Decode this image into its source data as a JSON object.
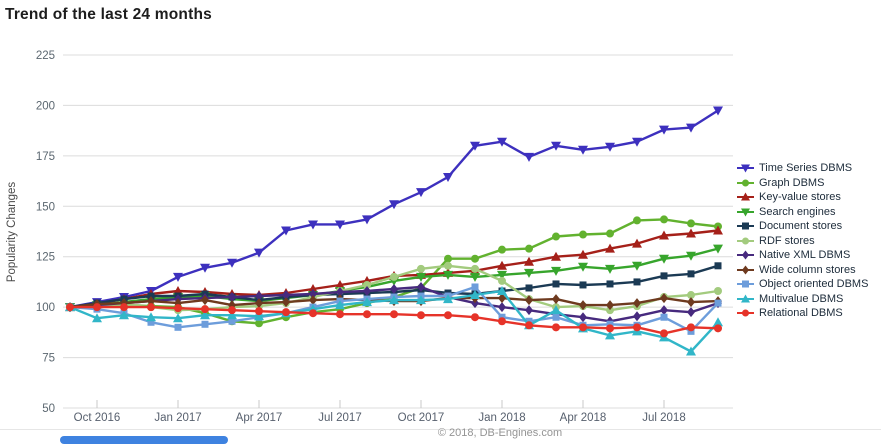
{
  "title": "Trend of the last 24 months",
  "footer": "© 2018, DB-Engines.com",
  "scrollbar": {
    "thumb_color": "#3E82E0"
  },
  "chart_data": {
    "type": "line",
    "title": "Trend of the last 24 months",
    "xlabel": "",
    "ylabel": "Popularity Changes",
    "ylim": [
      50,
      225
    ],
    "y_ticks": [
      225,
      200,
      175,
      150,
      125,
      100,
      75,
      50
    ],
    "grid": "horizontal",
    "legend_position": "right",
    "x": [
      "Sep 2016",
      "Oct 2016",
      "Nov 2016",
      "Dec 2016",
      "Jan 2017",
      "Feb 2017",
      "Mar 2017",
      "Apr 2017",
      "May 2017",
      "Jun 2017",
      "Jul 2017",
      "Aug 2017",
      "Sep 2017",
      "Oct 2017",
      "Nov 2017",
      "Dec 2017",
      "Jan 2018",
      "Feb 2018",
      "Mar 2018",
      "Apr 2018",
      "May 2018",
      "Jun 2018",
      "Jul 2018",
      "Aug 2018",
      "Sep 2018"
    ],
    "x_tick_labels": [
      "Oct 2016",
      "Jan 2017",
      "Apr 2017",
      "Jul 2017",
      "Oct 2017",
      "Jan 2018",
      "Apr 2018",
      "Jul 2018"
    ],
    "x_tick_indices": [
      1,
      4,
      7,
      10,
      13,
      16,
      19,
      22
    ],
    "series": [
      {
        "name": "Time Series DBMS",
        "color": "#3D30BE",
        "marker": "triangle-down",
        "values": [
          100,
          102.5,
          105,
          108,
          115,
          119.5,
          122,
          127,
          138,
          141,
          141,
          143.5,
          151,
          157,
          164.5,
          180,
          182,
          174.5,
          180,
          178,
          179.5,
          182,
          188,
          189,
          197.5
        ]
      },
      {
        "name": "Graph DBMS",
        "color": "#62B22F",
        "marker": "circle",
        "values": [
          100,
          100.5,
          101,
          100.5,
          100,
          97,
          93,
          92,
          95,
          97.5,
          99,
          102,
          105,
          109.5,
          124,
          124,
          128.5,
          129,
          135,
          136,
          136.5,
          143,
          143.5,
          141.5,
          140
        ]
      },
      {
        "name": "Key-value stores",
        "color": "#A52019",
        "marker": "triangle-up",
        "values": [
          100,
          101.5,
          104,
          106.5,
          108,
          107.5,
          106.5,
          106,
          107,
          109,
          111,
          113,
          115.5,
          116,
          117,
          118,
          120.5,
          122.5,
          125,
          126,
          129,
          131.5,
          135.5,
          136.5,
          138
        ]
      },
      {
        "name": "Search engines",
        "color": "#37A52C",
        "marker": "triangle-down",
        "values": [
          100,
          101,
          102.5,
          104,
          105,
          105.5,
          104,
          103,
          104.5,
          106,
          108,
          110,
          113,
          115,
          116,
          115,
          116,
          117,
          118,
          120,
          119,
          120.5,
          124,
          125.5,
          129
        ]
      },
      {
        "name": "Document stores",
        "color": "#1B3A54",
        "marker": "square",
        "values": [
          100,
          102,
          104,
          105.5,
          105.5,
          106.5,
          105,
          103.5,
          105,
          106,
          106.5,
          107,
          107.5,
          108.5,
          107,
          106.5,
          108,
          109.5,
          111.5,
          111,
          111.5,
          112.5,
          115.5,
          116.5,
          120.5
        ]
      },
      {
        "name": "RDF stores",
        "color": "#A3CB7E",
        "marker": "circle",
        "values": [
          100,
          100.5,
          101,
          100,
          98.5,
          99,
          100,
          100.5,
          102,
          105,
          108,
          111,
          115,
          119,
          120.5,
          119,
          113,
          104,
          100,
          100.5,
          98.5,
          100.5,
          105,
          106,
          108
        ]
      },
      {
        "name": "Native XML DBMS",
        "color": "#472A7E",
        "marker": "diamond",
        "values": [
          100,
          101,
          102,
          103,
          104,
          104.5,
          105,
          105.5,
          106,
          106.5,
          107.5,
          108,
          109,
          110,
          105,
          102,
          100,
          98.5,
          96.5,
          95,
          93,
          95.5,
          98.5,
          97.5,
          102
        ]
      },
      {
        "name": "Wide column stores",
        "color": "#6E3A1F",
        "marker": "diamond",
        "values": [
          100,
          101.5,
          102,
          103,
          102,
          103.5,
          101,
          102,
          102.5,
          103.5,
          104,
          103.5,
          103,
          103,
          104.5,
          104.5,
          104.5,
          103.5,
          104,
          101,
          101,
          102,
          104.5,
          102.5,
          103
        ]
      },
      {
        "name": "Object oriented DBMS",
        "color": "#6D9DDB",
        "marker": "square",
        "values": [
          100,
          99,
          97,
          92.5,
          90,
          91.5,
          93,
          95,
          97,
          100,
          103,
          104,
          105,
          105.5,
          105.5,
          110,
          95,
          93,
          95,
          91,
          91.5,
          91,
          95,
          88,
          102
        ]
      },
      {
        "name": "Multivalue DBMS",
        "color": "#31B6C8",
        "marker": "triangle-up",
        "values": [
          100,
          94.5,
          96,
          95,
          94.5,
          96,
          96,
          95.5,
          97,
          99,
          101,
          102.5,
          103.5,
          103.5,
          104,
          106,
          108,
          91,
          98.5,
          89.5,
          86,
          88,
          85,
          78,
          92.5
        ]
      },
      {
        "name": "Relational DBMS",
        "color": "#E63329",
        "marker": "circle",
        "values": [
          100,
          100,
          100,
          100,
          99.5,
          99,
          98.5,
          98,
          97.5,
          97,
          96.5,
          96.5,
          96.5,
          96,
          96,
          95,
          93,
          91,
          90,
          90,
          89.5,
          90,
          87,
          90,
          89.5
        ]
      }
    ]
  }
}
